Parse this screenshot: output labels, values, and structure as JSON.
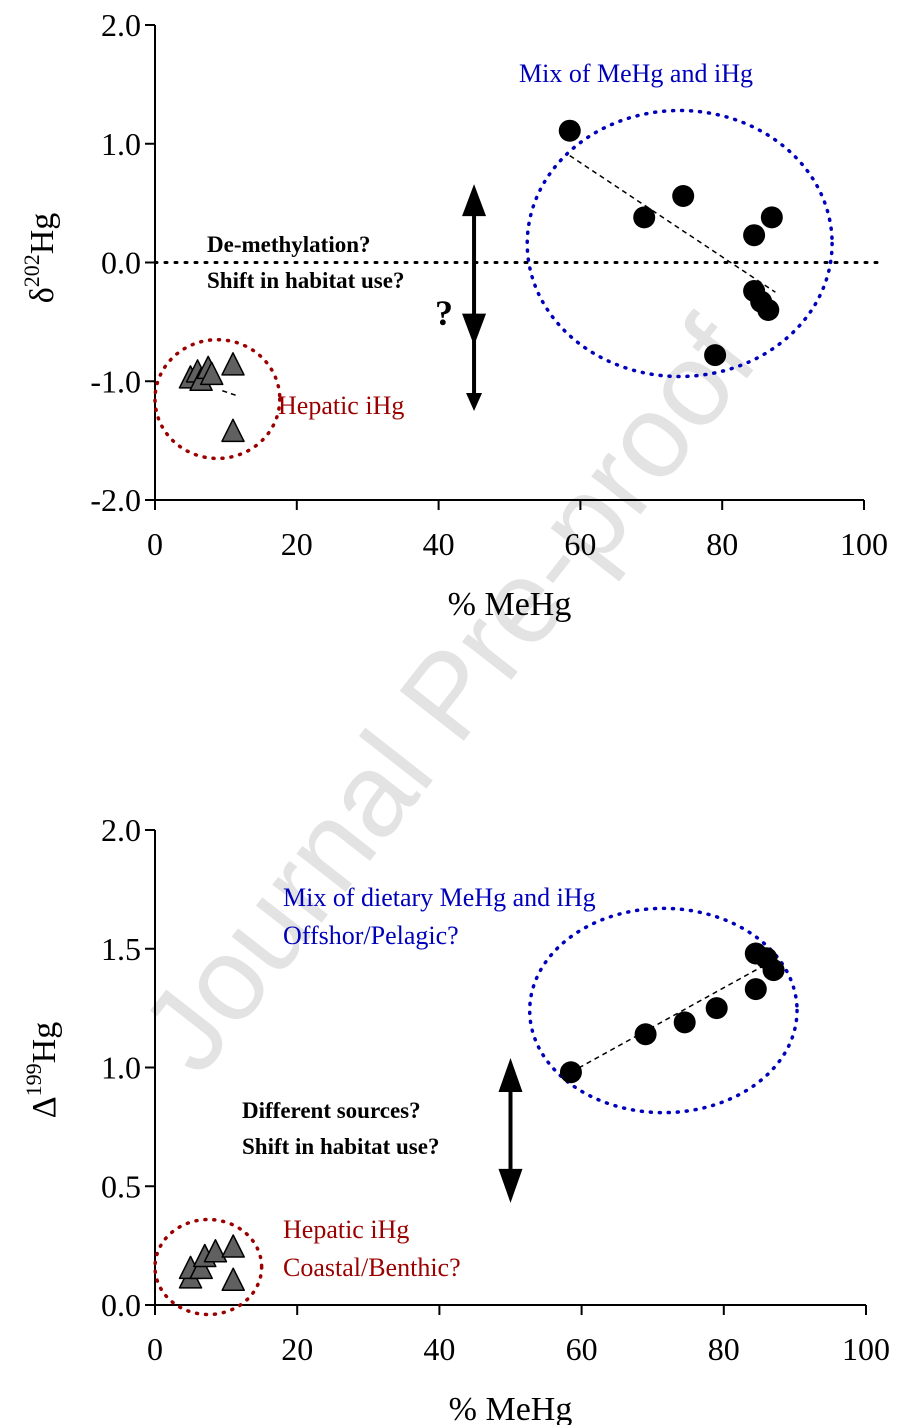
{
  "watermark": "Journal Pre-proof",
  "colors": {
    "axis": "#000000",
    "blue": "#0000bb",
    "red": "#9b0000",
    "triangle_fill": "#606060",
    "watermark": "#e3e3e3"
  },
  "chart_data": [
    {
      "type": "scatter",
      "xlabel": "% MeHg",
      "ylabel_symbol": "δ",
      "ylabel_sup": "202",
      "ylabel_elem": "Hg",
      "xlim": [
        0,
        100
      ],
      "ylim": [
        -2.0,
        2.0
      ],
      "xticks": [
        0,
        20,
        40,
        60,
        80,
        100
      ],
      "xtick_labels": [
        "0",
        "20",
        "40",
        "60",
        "80",
        "100"
      ],
      "yticks": [
        -2.0,
        -1.0,
        0.0,
        1.0,
        2.0
      ],
      "ytick_labels": [
        "-2.0",
        "-1.0",
        "0.0",
        "1.0",
        "2.0"
      ],
      "reference_line_y": 0.0,
      "series": [
        {
          "marker": "circle",
          "points": [
            [
              58.5,
              1.11
            ],
            [
              69.0,
              0.38
            ],
            [
              74.5,
              0.56
            ],
            [
              84.5,
              0.23
            ],
            [
              87.0,
              0.38
            ],
            [
              84.5,
              -0.24
            ],
            [
              85.5,
              -0.33
            ],
            [
              86.5,
              -0.4
            ],
            [
              79.0,
              -0.78
            ]
          ]
        },
        {
          "marker": "triangle",
          "points": [
            [
              5.0,
              -0.98
            ],
            [
              6.0,
              -0.93
            ],
            [
              6.5,
              -1.0
            ],
            [
              7.5,
              -0.9
            ],
            [
              8.0,
              -0.95
            ],
            [
              11.0,
              -0.87
            ],
            [
              11.0,
              -1.43
            ]
          ]
        }
      ],
      "trendlines": [
        {
          "from": [
            58.5,
            0.9
          ],
          "to": [
            87.5,
            -0.25
          ]
        },
        {
          "from": [
            9.5,
            -1.08
          ],
          "to": [
            11.5,
            -1.12
          ]
        }
      ],
      "ellipses": [
        {
          "group": "MeHg",
          "cx": 74,
          "cy": 0.16,
          "rx": 21.5,
          "ry": 1.12,
          "color": "blue"
        },
        {
          "group": "iHg",
          "cx": 8.8,
          "cy": -1.15,
          "rx": 8.8,
          "ry": 0.5,
          "color": "red"
        }
      ],
      "arrow": {
        "x": 45,
        "y_top": 0.66,
        "y_bottom": -1.25,
        "inner_top": 0.4,
        "inner_bottom": -0.7
      },
      "annotations": [
        {
          "id": "mix",
          "text": "Mix of MeHg and iHg",
          "color": "blue"
        },
        {
          "id": "hepatic",
          "text": "Hepatic iHg",
          "color": "red"
        },
        {
          "id": "q1",
          "text": "De-methylation?",
          "bold": true
        },
        {
          "id": "q2",
          "text": "Shift in habitat use?",
          "bold": true
        },
        {
          "id": "qmark",
          "text": "?",
          "bold": true
        }
      ]
    },
    {
      "type": "scatter",
      "xlabel": "% MeHg",
      "ylabel_symbol": "Δ",
      "ylabel_sup": "199",
      "ylabel_elem": "Hg",
      "xlim": [
        0,
        100
      ],
      "ylim": [
        0.0,
        2.0
      ],
      "xticks": [
        0,
        20,
        40,
        60,
        80,
        100
      ],
      "xtick_labels": [
        "0",
        "20",
        "40",
        "60",
        "80",
        "100"
      ],
      "yticks": [
        0.0,
        0.5,
        1.0,
        1.5,
        2.0
      ],
      "ytick_labels": [
        "0.0",
        "0.5",
        "1.0",
        "1.5",
        "2.0"
      ],
      "series": [
        {
          "marker": "circle",
          "points": [
            [
              58.5,
              0.98
            ],
            [
              69.0,
              1.14
            ],
            [
              74.5,
              1.19
            ],
            [
              79.0,
              1.25
            ],
            [
              84.5,
              1.33
            ],
            [
              84.5,
              1.48
            ],
            [
              86.0,
              1.46
            ],
            [
              87.0,
              1.41
            ]
          ]
        },
        {
          "marker": "triangle",
          "points": [
            [
              5.0,
              0.11
            ],
            [
              5.0,
              0.15
            ],
            [
              6.5,
              0.15
            ],
            [
              7.0,
              0.2
            ],
            [
              8.5,
              0.22
            ],
            [
              11.0,
              0.24
            ],
            [
              11.0,
              0.1
            ]
          ]
        }
      ],
      "trendlines": [
        {
          "from": [
            58.5,
            0.98
          ],
          "to": [
            87.5,
            1.46
          ]
        }
      ],
      "ellipses": [
        {
          "group": "MeHg",
          "cx": 71.5,
          "cy": 1.24,
          "rx": 18.8,
          "ry": 0.43,
          "color": "blue"
        },
        {
          "group": "iHg",
          "cx": 7.5,
          "cy": 0.16,
          "rx": 7.5,
          "ry": 0.2,
          "color": "red"
        }
      ],
      "arrow": {
        "x": 50,
        "y_top": 1.04,
        "y_bottom": 0.43
      },
      "annotations": [
        {
          "id": "mix1",
          "text": "Mix of dietary MeHg and iHg",
          "color": "blue"
        },
        {
          "id": "mix2",
          "text": "Offshor/Pelagic?",
          "color": "blue"
        },
        {
          "id": "hep1",
          "text": "Hepatic iHg",
          "color": "red"
        },
        {
          "id": "hep2",
          "text": "Coastal/Benthic?",
          "color": "red"
        },
        {
          "id": "q1",
          "text": "Different sources?",
          "bold": true
        },
        {
          "id": "q2",
          "text": "Shift in habitat use?",
          "bold": true
        }
      ]
    }
  ]
}
